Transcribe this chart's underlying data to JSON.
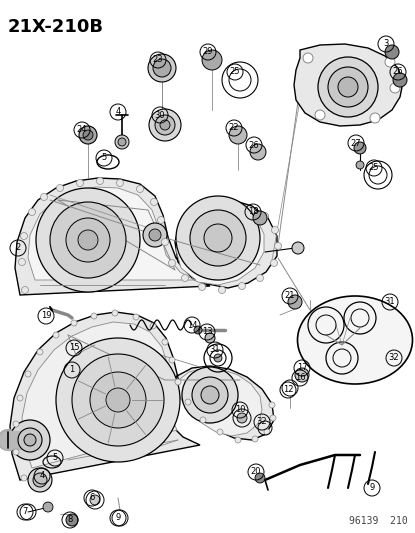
{
  "title": "21X-210B",
  "footer": "96139  210",
  "bg": "#ffffff",
  "fg": "#000000",
  "gray": "#888888",
  "lightgray": "#cccccc",
  "title_fs": 13,
  "footer_fs": 7
}
